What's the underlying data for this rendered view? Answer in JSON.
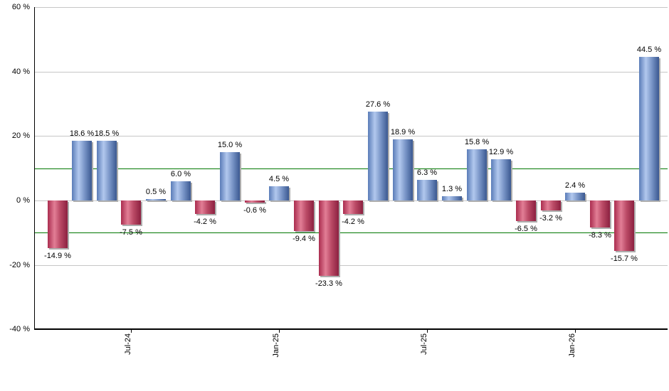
{
  "chart_data": {
    "type": "bar",
    "title": "",
    "xlabel": "",
    "ylabel": "",
    "ylim": [
      -40,
      60
    ],
    "grid": true,
    "legend": "none",
    "value_label_suffix": " %",
    "values": [
      -14.9,
      18.6,
      18.5,
      -7.5,
      0.5,
      6.0,
      -4.2,
      15.0,
      -0.6,
      4.5,
      -9.4,
      -23.3,
      -4.2,
      27.6,
      18.9,
      6.3,
      1.3,
      15.8,
      12.9,
      -6.5,
      -3.2,
      2.4,
      -8.3,
      -15.7,
      44.5
    ],
    "value_labels": [
      "-14.9 %",
      "18.6 %",
      "18.5 %",
      "-7.5 %",
      "0.5 %",
      "6.0 %",
      "-4.2 %",
      "15.0 %",
      "-0.6 %",
      "4.5 %",
      "-9.4 %",
      "-23.3 %",
      "-4.2 %",
      "27.6 %",
      "18.9 %",
      "6.3 %",
      "1.3 %",
      "15.8 %",
      "12.9 %",
      "-6.5 %",
      "-3.2 %",
      "2.4 %",
      "-8.3 %",
      "-15.7 %",
      "44.5 %"
    ],
    "y_ticks": [
      {
        "value": 60,
        "label": "60 %"
      },
      {
        "value": 40,
        "label": "40 %"
      },
      {
        "value": 20,
        "label": "20 %"
      },
      {
        "value": 0,
        "label": "0 %"
      },
      {
        "value": -20,
        "label": "-20 %"
      },
      {
        "value": -40,
        "label": "-40 %"
      }
    ],
    "x_ticks": [
      {
        "bar_index": 3,
        "label": "Jul-24"
      },
      {
        "bar_index": 9,
        "label": "Jan-25"
      },
      {
        "bar_index": 15,
        "label": "Jul-25"
      },
      {
        "bar_index": 21,
        "label": "Jan-26"
      }
    ],
    "reference_lines": [
      {
        "value": 10
      },
      {
        "value": -10
      }
    ],
    "colors": {
      "positive_bar": "#7b9cd4",
      "negative_bar": "#c23a5c",
      "reference_line": "#007700",
      "gridline": "#c6c6c6",
      "axis": "#000000",
      "label_text": "#000000",
      "background": "#ffffff"
    }
  }
}
